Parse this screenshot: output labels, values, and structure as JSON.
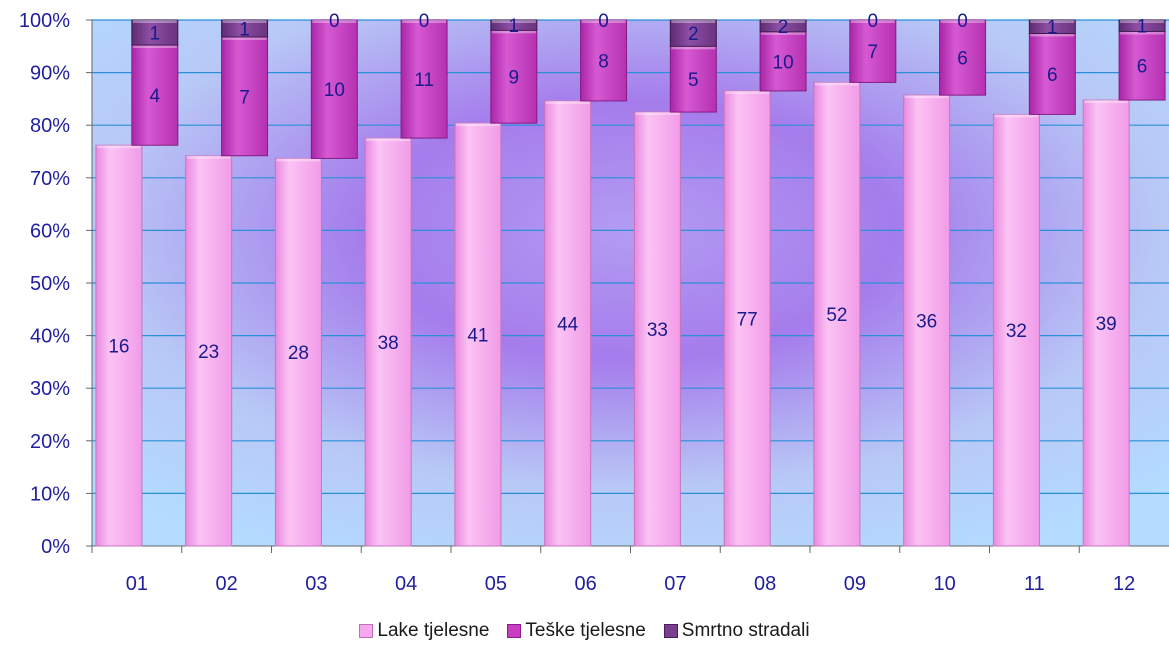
{
  "chart_data": {
    "type": "bar",
    "stacking": "percent",
    "categories": [
      "01",
      "02",
      "03",
      "04",
      "05",
      "06",
      "07",
      "08",
      "09",
      "10",
      "11",
      "12"
    ],
    "series": [
      {
        "name": "Lake tjelesne",
        "values": [
          16,
          23,
          28,
          38,
          41,
          44,
          33,
          77,
          52,
          36,
          32,
          39
        ],
        "color": "#f7a8ee"
      },
      {
        "name": "Teške tjelesne",
        "values": [
          4,
          7,
          10,
          11,
          9,
          8,
          5,
          10,
          7,
          6,
          6,
          6
        ],
        "color": "#c83dc4"
      },
      {
        "name": "Smrtno stradali",
        "values": [
          1,
          1,
          0,
          0,
          1,
          0,
          2,
          2,
          0,
          0,
          1,
          1
        ],
        "color": "#7a3e8f"
      }
    ],
    "y_ticks": [
      "0%",
      "10%",
      "20%",
      "30%",
      "40%",
      "50%",
      "60%",
      "70%",
      "80%",
      "90%",
      "100%"
    ],
    "ylim": [
      0,
      100
    ],
    "grid": true,
    "legend_position": "bottom",
    "colors": {
      "tick_text": "#1f1f9e",
      "data_label": "#1a1a8c",
      "grid": "#2b8fd8",
      "axis": "#666666",
      "background_center": "#a77ae8",
      "background_edge": "#b9e0ff"
    }
  }
}
